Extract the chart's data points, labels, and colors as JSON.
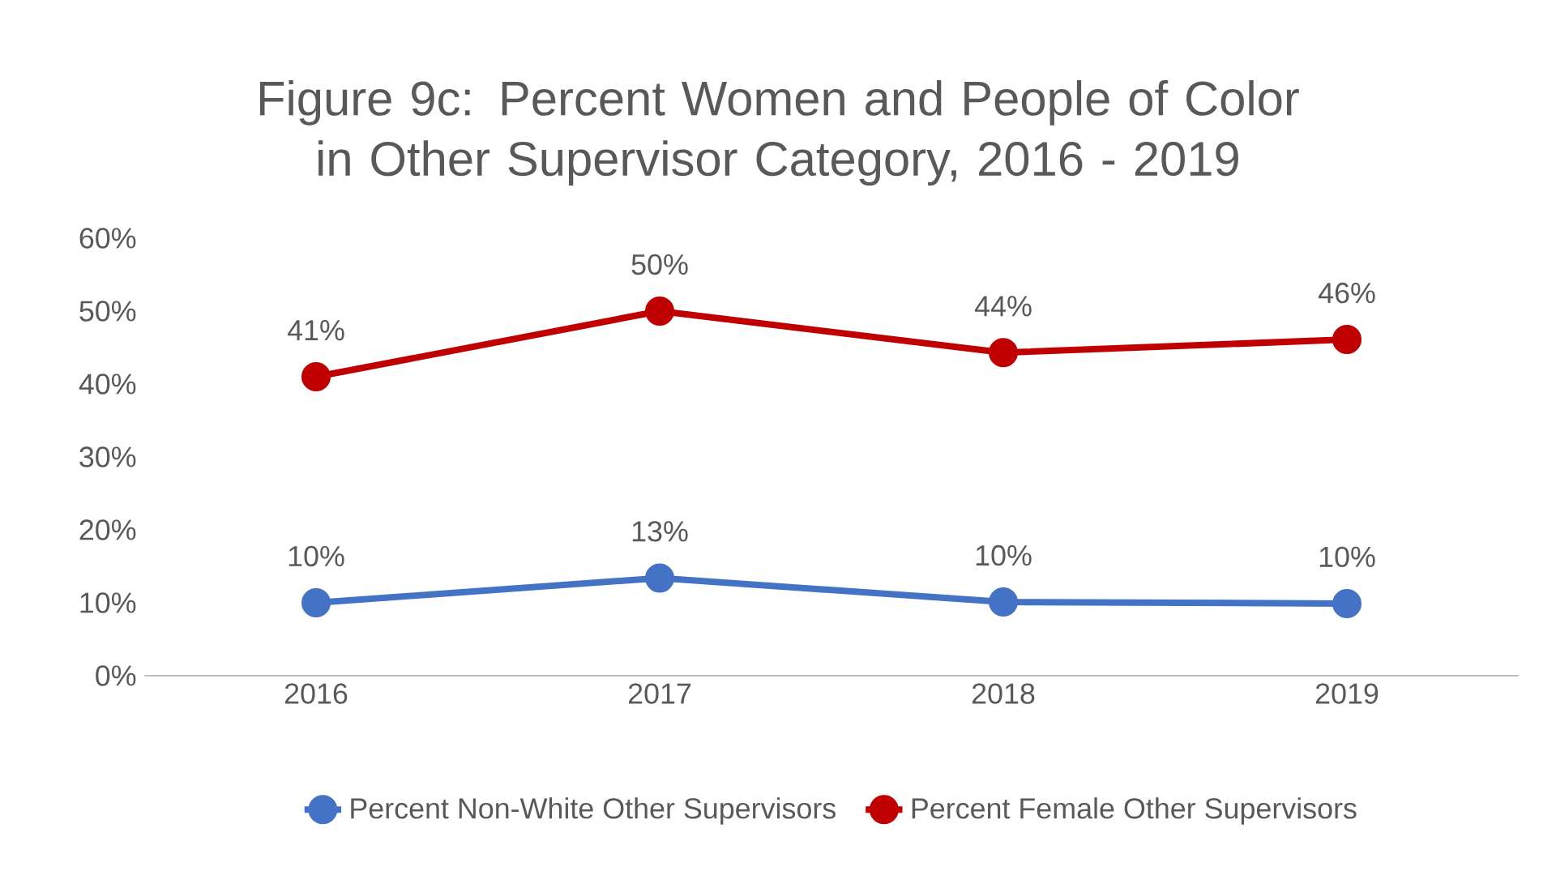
{
  "chart_data": {
    "type": "line",
    "title": "Figure 9c:  Percent Women and People of Color in Other Supervisor Category, 2016 - 2019",
    "categories": [
      "2016",
      "2017",
      "2018",
      "2019"
    ],
    "series": [
      {
        "name": "Percent Non-White Other Supervisors",
        "color": "#4472c4",
        "values": [
          10,
          13.4,
          10.1,
          9.9
        ],
        "value_labels": [
          "10%",
          "13%",
          "10%",
          "10%"
        ]
      },
      {
        "name": "Percent Female Other Supervisors",
        "color": "#c00000",
        "values": [
          41,
          50,
          44.3,
          46.1
        ],
        "value_labels": [
          "41%",
          "50%",
          "44%",
          "46%"
        ]
      }
    ],
    "ylim": [
      0,
      60
    ],
    "yticks": [
      {
        "value": 0,
        "label": "0%"
      },
      {
        "value": 10,
        "label": "10%"
      },
      {
        "value": 20,
        "label": "20%"
      },
      {
        "value": 30,
        "label": "30%"
      },
      {
        "value": 40,
        "label": "40%"
      },
      {
        "value": 50,
        "label": "50%"
      },
      {
        "value": 60,
        "label": "60%"
      }
    ],
    "legend": "bottom",
    "marker": "circle",
    "line_style": "solid"
  }
}
